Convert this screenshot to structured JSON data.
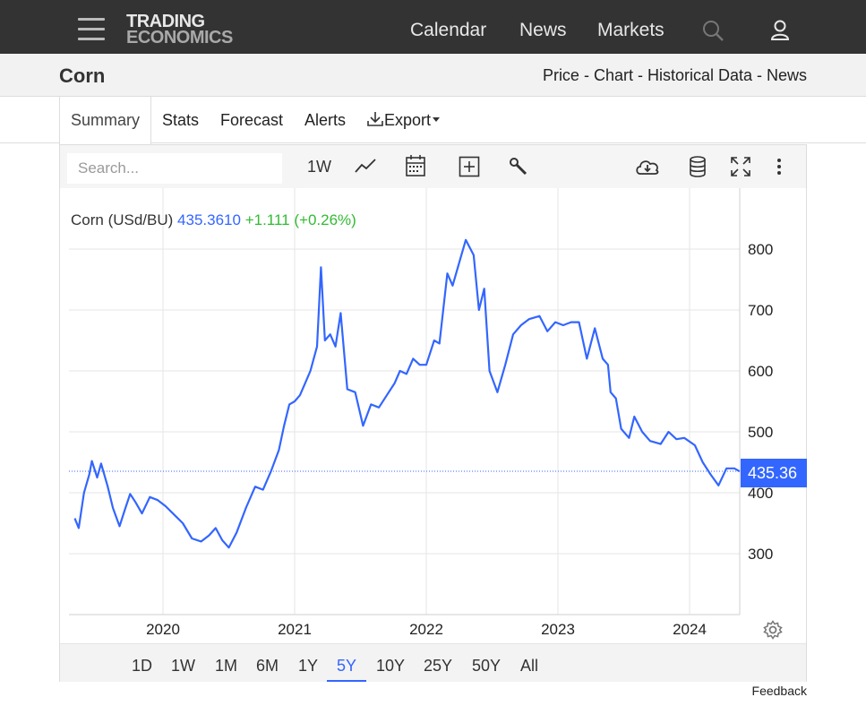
{
  "header": {
    "logo_line1": "TRADING",
    "logo_line2": "ECONOMICS",
    "nav": [
      "Calendar",
      "News",
      "Markets"
    ]
  },
  "page": {
    "title": "Corn",
    "breadcrumb": "Price - Chart - Historical Data - News"
  },
  "tabs": [
    "Summary",
    "Stats",
    "Forecast",
    "Alerts",
    "Export"
  ],
  "toolbar": {
    "search_placeholder": "Search...",
    "interval": "1W"
  },
  "legend": {
    "name": "Corn (USd/BU)",
    "price": "435.3610",
    "change": "+1.111 (+0.26%)"
  },
  "price_tag": "435.36",
  "ranges": [
    "1D",
    "1W",
    "1M",
    "6M",
    "1Y",
    "5Y",
    "10Y",
    "25Y",
    "50Y",
    "All"
  ],
  "active_range": "5Y",
  "feedback": "Feedback",
  "colors": {
    "line": "#3366ff",
    "accent": "#3366ff",
    "positive": "#33bb33",
    "header_bg": "#333333"
  },
  "chart_data": {
    "type": "line",
    "x_ticks": [
      "2020",
      "2021",
      "2022",
      "2023",
      "2024"
    ],
    "y_ticks": [
      300,
      400,
      500,
      600,
      700,
      800
    ],
    "ylim": [
      200,
      900
    ],
    "last_value": 435.36,
    "series": [
      {
        "name": "Corn (USd/BU)",
        "points": [
          [
            2019.33,
            358
          ],
          [
            2019.36,
            342
          ],
          [
            2019.4,
            400
          ],
          [
            2019.44,
            430
          ],
          [
            2019.46,
            452
          ],
          [
            2019.5,
            425
          ],
          [
            2019.53,
            448
          ],
          [
            2019.58,
            410
          ],
          [
            2019.62,
            375
          ],
          [
            2019.67,
            345
          ],
          [
            2019.71,
            372
          ],
          [
            2019.75,
            398
          ],
          [
            2019.79,
            385
          ],
          [
            2019.84,
            366
          ],
          [
            2019.9,
            393
          ],
          [
            2019.96,
            388
          ],
          [
            2020.02,
            378
          ],
          [
            2020.08,
            365
          ],
          [
            2020.15,
            350
          ],
          [
            2020.22,
            325
          ],
          [
            2020.29,
            320
          ],
          [
            2020.35,
            330
          ],
          [
            2020.4,
            342
          ],
          [
            2020.45,
            322
          ],
          [
            2020.5,
            310
          ],
          [
            2020.56,
            335
          ],
          [
            2020.63,
            375
          ],
          [
            2020.7,
            410
          ],
          [
            2020.76,
            405
          ],
          [
            2020.82,
            435
          ],
          [
            2020.88,
            470
          ],
          [
            2020.92,
            510
          ],
          [
            2020.96,
            545
          ],
          [
            2021.0,
            550
          ],
          [
            2021.04,
            560
          ],
          [
            2021.08,
            580
          ],
          [
            2021.12,
            600
          ],
          [
            2021.17,
            640
          ],
          [
            2021.2,
            770
          ],
          [
            2021.23,
            650
          ],
          [
            2021.27,
            660
          ],
          [
            2021.31,
            640
          ],
          [
            2021.35,
            695
          ],
          [
            2021.4,
            570
          ],
          [
            2021.46,
            565
          ],
          [
            2021.52,
            510
          ],
          [
            2021.58,
            545
          ],
          [
            2021.64,
            540
          ],
          [
            2021.7,
            560
          ],
          [
            2021.76,
            580
          ],
          [
            2021.8,
            600
          ],
          [
            2021.85,
            595
          ],
          [
            2021.9,
            620
          ],
          [
            2021.95,
            610
          ],
          [
            2022.0,
            610
          ],
          [
            2022.06,
            650
          ],
          [
            2022.1,
            645
          ],
          [
            2022.16,
            760
          ],
          [
            2022.2,
            740
          ],
          [
            2022.26,
            785
          ],
          [
            2022.3,
            815
          ],
          [
            2022.36,
            790
          ],
          [
            2022.4,
            700
          ],
          [
            2022.44,
            735
          ],
          [
            2022.48,
            600
          ],
          [
            2022.54,
            565
          ],
          [
            2022.6,
            610
          ],
          [
            2022.66,
            660
          ],
          [
            2022.72,
            675
          ],
          [
            2022.78,
            685
          ],
          [
            2022.86,
            690
          ],
          [
            2022.92,
            665
          ],
          [
            2022.98,
            680
          ],
          [
            2023.04,
            675
          ],
          [
            2023.1,
            680
          ],
          [
            2023.16,
            680
          ],
          [
            2023.22,
            620
          ],
          [
            2023.28,
            670
          ],
          [
            2023.34,
            620
          ],
          [
            2023.38,
            610
          ],
          [
            2023.4,
            565
          ],
          [
            2023.44,
            555
          ],
          [
            2023.48,
            505
          ],
          [
            2023.54,
            490
          ],
          [
            2023.58,
            525
          ],
          [
            2023.64,
            500
          ],
          [
            2023.7,
            485
          ],
          [
            2023.78,
            480
          ],
          [
            2023.84,
            500
          ],
          [
            2023.9,
            488
          ],
          [
            2023.96,
            490
          ],
          [
            2024.04,
            478
          ],
          [
            2024.1,
            450
          ],
          [
            2024.16,
            430
          ],
          [
            2024.22,
            412
          ],
          [
            2024.28,
            440
          ],
          [
            2024.34,
            440
          ],
          [
            2024.38,
            435
          ]
        ]
      }
    ]
  }
}
